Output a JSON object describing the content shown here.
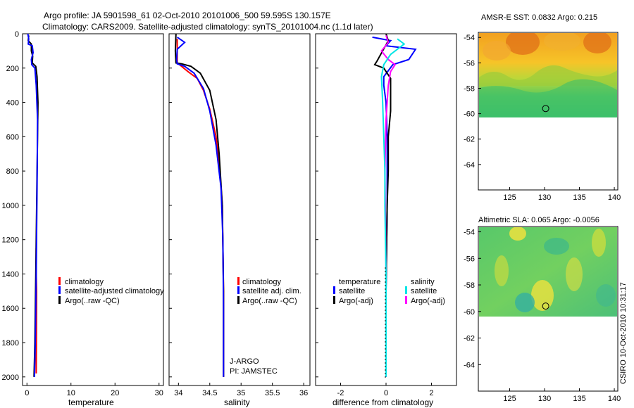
{
  "header": {
    "title_line1": "Argo profile: JA 5901598_61 02-Oct-2010 20101006_500 59.595S 130.157E",
    "title_line2": "Climatology: CARS2009. Satellite-adjusted climatology: synTS_20101004.nc (1.1d later)"
  },
  "watermark": "CSIRO 10-Oct-2010 10:31:17",
  "colors": {
    "climatology": "#ff0000",
    "satellite": "#0000ff",
    "argo": "#000000",
    "sal_satellite": "#00e5e5",
    "sal_argo": "#ff00ff"
  },
  "chart_data": [
    {
      "type": "line",
      "id": "temperature",
      "xlabel": "temperature",
      "ylabel": "",
      "xlim": [
        -1,
        31
      ],
      "ylim": [
        2050,
        0
      ],
      "xticks": [
        0,
        10,
        20,
        30
      ],
      "yticks": [
        0,
        200,
        400,
        600,
        800,
        1000,
        1200,
        1400,
        1600,
        1800,
        2000
      ],
      "ytick_labels": [
        "0",
        "200",
        "400",
        "600",
        "800",
        "1000",
        "1200",
        "1400",
        "1600",
        "1800",
        "2000"
      ],
      "legend": [
        "climatology",
        "satellite-adjusted climatology",
        "Argo(..raw -QC)"
      ],
      "series": [
        {
          "name": "climatology",
          "color": "#ff0000",
          "x": [
            2.1,
            2.1,
            2.2,
            2.15,
            2.1
          ],
          "y": [
            1250,
            1400,
            1500,
            1800,
            1980
          ]
        },
        {
          "name": "Argo(..raw -QC)",
          "color": "#000000",
          "x": [
            0.4,
            0.3,
            1.0,
            1.0,
            1.3,
            1.2,
            2.0,
            2.3,
            2.5,
            2.4,
            2.2,
            2.0,
            1.8,
            1.6
          ],
          "y": [
            10,
            40,
            60,
            100,
            130,
            170,
            190,
            250,
            400,
            600,
            1000,
            1400,
            1800,
            2000
          ]
        },
        {
          "name": "satellite-adjusted climatology",
          "color": "#0000ff",
          "x": [
            0.2,
            0.4,
            0.3,
            1.2,
            1.4,
            1.0,
            1.1,
            1.8,
            2.1,
            2.4,
            2.3,
            2.1,
            1.9,
            1.7
          ],
          "y": [
            0,
            30,
            60,
            70,
            110,
            150,
            180,
            200,
            300,
            500,
            900,
            1400,
            1800,
            2000
          ]
        }
      ]
    },
    {
      "type": "line",
      "id": "salinity",
      "xlabel": "salinity",
      "ylabel": "",
      "xlim": [
        33.85,
        36.1
      ],
      "ylim": [
        2050,
        0
      ],
      "xticks": [
        34,
        34.5,
        35,
        35.5,
        36
      ],
      "xtick_labels": [
        "34",
        "34.5",
        "35",
        "35.5",
        "36"
      ],
      "legend": [
        "climatology",
        "satellite adj. clim.",
        "Argo(..raw -QC)"
      ],
      "annotations": [
        "J-ARGO",
        "PI: JAMSTEC"
      ],
      "series": [
        {
          "name": "climatology",
          "color": "#ff0000",
          "x": [
            33.98,
            33.98,
            34.05,
            34.15,
            34.3,
            34.4,
            34.5,
            34.6,
            34.66,
            34.7,
            34.72,
            34.72
          ],
          "y": [
            30,
            170,
            190,
            220,
            260,
            330,
            440,
            600,
            800,
            1000,
            1500,
            2000
          ]
        },
        {
          "name": "Argo(..raw -QC)",
          "color": "#000000",
          "x": [
            33.96,
            33.95,
            33.96,
            34.05,
            34.2,
            34.35,
            34.5,
            34.6,
            34.65,
            34.7,
            34.72,
            34.72
          ],
          "y": [
            0,
            100,
            170,
            175,
            190,
            230,
            330,
            500,
            700,
            1000,
            1500,
            2000
          ]
        },
        {
          "name": "satellite adj. clim.",
          "color": "#0000ff",
          "x": [
            33.98,
            34.1,
            33.98,
            33.97,
            33.98,
            34.1,
            34.25,
            34.4,
            34.5,
            34.6,
            34.68,
            34.71,
            34.72,
            34.72
          ],
          "y": [
            20,
            50,
            90,
            150,
            175,
            190,
            230,
            320,
            450,
            650,
            900,
            1200,
            1600,
            2000
          ]
        }
      ]
    },
    {
      "type": "line",
      "id": "difference",
      "xlabel": "difference from climatology",
      "ylabel": "",
      "xlim": [
        -3.1,
        3.1
      ],
      "ylim": [
        2050,
        0
      ],
      "xticks": [
        -2,
        0,
        2
      ],
      "xtick_labels": [
        "-2",
        "0",
        "2"
      ],
      "legend_titles": [
        "temperature",
        "salinity"
      ],
      "legend": [
        {
          "label": "satellite",
          "color": "#0000ff"
        },
        {
          "label": "Argo(-adj)",
          "color": "#000000"
        },
        {
          "label": "satellite",
          "color": "#00e5e5"
        },
        {
          "label": "Argo(-adj)",
          "color": "#ff00ff"
        }
      ],
      "series": [
        {
          "name": "temperature satellite",
          "color": "#0000ff",
          "x": [
            -0.6,
            0.2,
            0.0,
            1.3,
            1.0,
            0.3,
            -0.1,
            -0.1,
            0.0,
            0.05,
            0.05,
            0.0,
            0.0
          ],
          "y": [
            20,
            40,
            70,
            90,
            150,
            180,
            250,
            300,
            400,
            600,
            1000,
            1500,
            2000
          ]
        },
        {
          "name": "temperature Argo(-adj)",
          "color": "#000000",
          "x": [
            0.0,
            0.1,
            -0.4,
            -0.5,
            -0.1,
            0.2,
            0.2,
            0.2,
            0.1,
            0.1,
            0.05,
            0.0,
            0.0
          ],
          "y": [
            0,
            40,
            160,
            180,
            200,
            260,
            350,
            450,
            600,
            800,
            1000,
            1500,
            2000
          ]
        },
        {
          "name": "salinity Argo(-adj)",
          "color": "#ff00ff",
          "x": [
            0.0,
            0.1,
            -0.2,
            0.1,
            0.4,
            0.2,
            0.1,
            0.0,
            -0.05,
            0.0,
            0.0
          ],
          "y": [
            10,
            50,
            100,
            150,
            180,
            220,
            300,
            500,
            800,
            1400,
            2000
          ]
        },
        {
          "name": "salinity satellite",
          "color": "#00e5e5",
          "x": [
            0.5,
            0.8,
            0.2,
            -0.1,
            -0.2,
            -0.15,
            -0.1,
            -0.05,
            -0.05,
            0.0,
            0.0
          ],
          "y": [
            30,
            60,
            120,
            180,
            250,
            400,
            600,
            800,
            1000,
            1400,
            2000
          ]
        }
      ]
    },
    {
      "type": "heatmap",
      "id": "sst-map",
      "title": "AMSR-E SST: 0.0832 Argo: 0.215",
      "xlim": [
        120.5,
        140.5
      ],
      "ylim": [
        -66,
        -53.6
      ],
      "xticks": [
        125,
        130,
        135,
        140
      ],
      "yticks": [
        -54,
        -56,
        -58,
        -60,
        -62,
        -64
      ],
      "data_lat_range": [
        -60,
        -53.6
      ],
      "profile_location": {
        "lon": 130.157,
        "lat": -59.595
      }
    },
    {
      "type": "heatmap",
      "id": "sla-map",
      "title": "Altimetric SLA: 0.065 Argo: -0.0056",
      "xlim": [
        120.5,
        140.5
      ],
      "ylim": [
        -66,
        -53.6
      ],
      "xticks": [
        125,
        130,
        135,
        140
      ],
      "yticks": [
        -54,
        -56,
        -58,
        -60,
        -62,
        -64
      ],
      "data_lat_range": [
        -60,
        -53.6
      ],
      "profile_location": {
        "lon": 130.157,
        "lat": -59.595
      }
    }
  ]
}
